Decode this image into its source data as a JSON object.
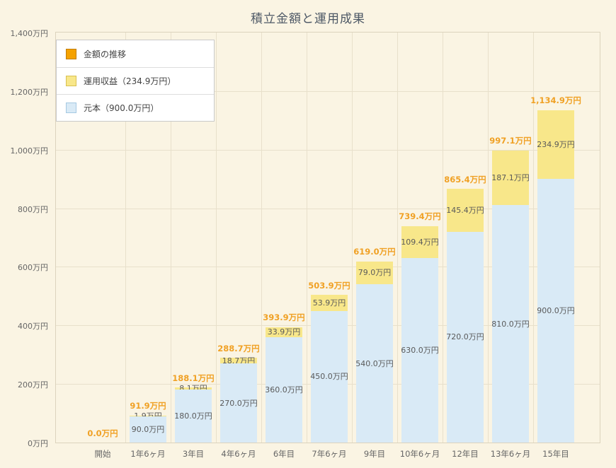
{
  "chart_data": {
    "type": "bar",
    "stacked": true,
    "title": "積立金額と運用成果",
    "background": "#faf4e3",
    "ylim": [
      0,
      1400
    ],
    "grid": true,
    "legend_position": "top-left",
    "y_ticks": [
      {
        "v": 0,
        "label": "0万円"
      },
      {
        "v": 200,
        "label": "200万円"
      },
      {
        "v": 400,
        "label": "400万円"
      },
      {
        "v": 600,
        "label": "600万円"
      },
      {
        "v": 800,
        "label": "800万円"
      },
      {
        "v": 1000,
        "label": "1,000万円"
      },
      {
        "v": 1200,
        "label": "1,200万円"
      },
      {
        "v": 1400,
        "label": "1,400万円"
      }
    ],
    "categories": [
      "開始",
      "1年6ヶ月",
      "3年目",
      "4年6ヶ月",
      "6年目",
      "7年6ヶ月",
      "9年目",
      "10年6ヶ月",
      "12年目",
      "13年6ヶ月",
      "15年目"
    ],
    "series": [
      {
        "name": "元本（900.0万円）",
        "key": "principal",
        "color": "#d9eaf6",
        "values": [
          0,
          90.0,
          180.0,
          270.0,
          360.0,
          450.0,
          540.0,
          630.0,
          720.0,
          810.0,
          900.0
        ],
        "labels": [
          "",
          "90.0万円",
          "180.0万円",
          "270.0万円",
          "360.0万円",
          "450.0万円",
          "540.0万円",
          "630.0万円",
          "720.0万円",
          "810.0万円",
          "900.0万円"
        ]
      },
      {
        "name": "運用収益（234.9万円）",
        "key": "profit",
        "color": "#f8e78a",
        "values": [
          0,
          1.9,
          8.1,
          18.7,
          33.9,
          53.9,
          79.0,
          109.4,
          145.4,
          187.1,
          234.9
        ],
        "labels": [
          "",
          "1.9万円",
          "8.1万円",
          "18.7万円",
          "33.9万円",
          "53.9万円",
          "79.0万円",
          "109.4万円",
          "145.4万円",
          "187.1万円",
          "234.9万円"
        ]
      }
    ],
    "totals": [
      0,
      91.9,
      188.1,
      288.7,
      393.9,
      503.9,
      619.0,
      739.4,
      865.4,
      997.1,
      1134.9
    ],
    "total_labels": [
      "0.0万円",
      "91.9万円",
      "188.1万円",
      "288.7万円",
      "393.9万円",
      "503.9万円",
      "619.0万円",
      "739.4万円",
      "865.4万円",
      "997.1万円",
      "1,134.9万円"
    ],
    "legend": [
      {
        "label": "金額の推移",
        "swatch_color": "#f5a200",
        "swatch_border": "#c07d00"
      },
      {
        "label": "運用収益（234.9万円）",
        "swatch_color": "#f8e78a",
        "swatch_border": "#d8c052"
      },
      {
        "label": "元本（900.0万円）",
        "swatch_color": "#d9eaf6",
        "swatch_border": "#a5c9e2"
      }
    ],
    "colors": {
      "total_label": "#f0a125",
      "segment_label": "#5a5a5a",
      "axis_label": "#666666",
      "grid": "#e8e0cb",
      "title": "#4d5866"
    }
  }
}
